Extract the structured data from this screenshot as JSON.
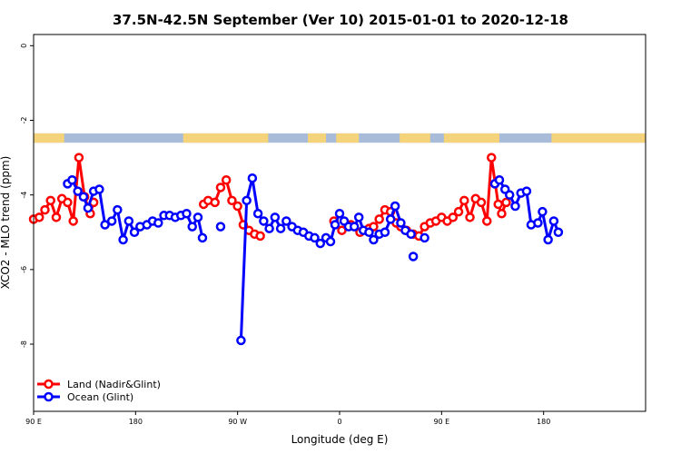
{
  "chart_data": {
    "type": "line",
    "title": "37.5N-42.5N September (Ver 10)   2015-01-01 to 2020-12-18",
    "xlabel": "Longitude (deg E)",
    "ylabel": "XCO2 - MLO trend (ppm)",
    "xlim": [
      90,
      630
    ],
    "ylim": [
      -9.8,
      0.3
    ],
    "xticks": [
      {
        "value": 90,
        "label": "90 E"
      },
      {
        "value": 180,
        "label": "180"
      },
      {
        "value": 270,
        "label": "90 W"
      },
      {
        "value": 360,
        "label": "0"
      },
      {
        "value": 450,
        "label": "90 E"
      },
      {
        "value": 540,
        "label": "180"
      }
    ],
    "yticks": [
      {
        "value": 0,
        "label": "0"
      },
      {
        "value": -2,
        "label": "-2"
      },
      {
        "value": -4,
        "label": "-4"
      },
      {
        "value": -6,
        "label": "-6"
      },
      {
        "value": -8,
        "label": "-8"
      }
    ],
    "map_strip": {
      "y_top": -2.35,
      "y_bottom": -2.6,
      "land_color": "#F4D37A",
      "ocean_color": "#A8BCDA"
    },
    "series": [
      {
        "name": "Land (Nadir&Glint)",
        "color": "#FF0000",
        "segments": [
          [
            [
              90,
              -4.65
            ],
            [
              95,
              -4.6
            ],
            [
              100,
              -4.4
            ],
            [
              105,
              -4.15
            ],
            [
              110,
              -4.6
            ],
            [
              115,
              -4.1
            ],
            [
              120,
              -4.2
            ],
            [
              125,
              -4.7
            ],
            [
              130,
              -3.0
            ],
            [
              135,
              -4.05
            ],
            [
              140,
              -4.5
            ],
            [
              143,
              -4.2
            ]
          ],
          [
            [
              240,
              -4.25
            ],
            [
              244,
              -4.15
            ],
            [
              250,
              -4.2
            ],
            [
              255,
              -3.8
            ],
            [
              260,
              -3.6
            ],
            [
              265,
              -4.15
            ],
            [
              270,
              -4.3
            ],
            [
              275,
              -4.8
            ],
            [
              280,
              -4.95
            ],
            [
              285,
              -5.05
            ],
            [
              290,
              -5.1
            ]
          ],
          [
            [
              355,
              -4.7
            ],
            [
              362,
              -4.95
            ],
            [
              370,
              -4.8
            ],
            [
              378,
              -5.0
            ],
            [
              386,
              -4.9
            ],
            [
              390,
              -4.85
            ],
            [
              395,
              -4.65
            ],
            [
              400,
              -4.4
            ],
            [
              405,
              -4.45
            ],
            [
              410,
              -4.75
            ],
            [
              414,
              -4.85
            ],
            [
              419,
              -4.95
            ],
            [
              425,
              -5.05
            ],
            [
              430,
              -5.1
            ],
            [
              435,
              -4.85
            ],
            [
              440,
              -4.75
            ],
            [
              445,
              -4.7
            ],
            [
              450,
              -4.6
            ],
            [
              455,
              -4.7
            ],
            [
              460,
              -4.6
            ],
            [
              465,
              -4.45
            ],
            [
              470,
              -4.15
            ],
            [
              475,
              -4.6
            ],
            [
              480,
              -4.1
            ],
            [
              485,
              -4.2
            ],
            [
              490,
              -4.7
            ],
            [
              494,
              -3.0
            ],
            [
              500,
              -4.25
            ],
            [
              503,
              -4.5
            ],
            [
              507,
              -4.2
            ]
          ]
        ]
      },
      {
        "name": "Ocean (Glint)",
        "color": "#0000FF",
        "segments": [
          [
            [
              120,
              -3.7
            ],
            [
              124,
              -3.6
            ],
            [
              129,
              -3.9
            ],
            [
              134,
              -4.05
            ],
            [
              138,
              -4.35
            ],
            [
              143,
              -3.9
            ],
            [
              148,
              -3.85
            ],
            [
              153,
              -4.8
            ],
            [
              159,
              -4.7
            ],
            [
              164,
              -4.4
            ],
            [
              169,
              -5.2
            ],
            [
              174,
              -4.7
            ],
            [
              179,
              -5.0
            ],
            [
              184,
              -4.85
            ],
            [
              190,
              -4.8
            ],
            [
              195,
              -4.7
            ],
            [
              200,
              -4.75
            ],
            [
              205,
              -4.55
            ],
            [
              210,
              -4.55
            ],
            [
              215,
              -4.6
            ],
            [
              220,
              -4.55
            ],
            [
              225,
              -4.5
            ],
            [
              230,
              -4.85
            ],
            [
              235,
              -4.6
            ],
            [
              239,
              -5.15
            ]
          ],
          [
            [
              255,
              -4.85
            ]
          ],
          [
            [
              273,
              -7.9
            ],
            [
              278,
              -4.15
            ],
            [
              283,
              -3.55
            ],
            [
              288,
              -4.5
            ],
            [
              293,
              -4.7
            ],
            [
              298,
              -4.9
            ],
            [
              303,
              -4.6
            ],
            [
              308,
              -4.9
            ],
            [
              313,
              -4.7
            ],
            [
              318,
              -4.85
            ],
            [
              323,
              -4.95
            ],
            [
              328,
              -5.0
            ],
            [
              333,
              -5.1
            ],
            [
              338,
              -5.15
            ],
            [
              343,
              -5.3
            ],
            [
              348,
              -5.15
            ],
            [
              352,
              -5.25
            ],
            [
              356,
              -4.8
            ],
            [
              360,
              -4.5
            ],
            [
              364,
              -4.7
            ],
            [
              368,
              -4.85
            ],
            [
              373,
              -4.85
            ],
            [
              377,
              -4.6
            ],
            [
              381,
              -4.95
            ],
            [
              386,
              -5.0
            ],
            [
              390,
              -5.2
            ],
            [
              395,
              -5.05
            ],
            [
              400,
              -5.0
            ],
            [
              405,
              -4.65
            ],
            [
              409,
              -4.3
            ],
            [
              414,
              -4.75
            ],
            [
              418,
              -4.95
            ],
            [
              423,
              -5.05
            ]
          ],
          [
            [
              425,
              -5.65
            ]
          ],
          [
            [
              435,
              -5.15
            ]
          ],
          [
            [
              497,
              -3.7
            ],
            [
              501,
              -3.6
            ],
            [
              506,
              -3.85
            ],
            [
              510,
              -4.0
            ],
            [
              515,
              -4.3
            ],
            [
              520,
              -3.95
            ],
            [
              525,
              -3.9
            ],
            [
              529,
              -4.8
            ],
            [
              535,
              -4.75
            ],
            [
              539,
              -4.45
            ],
            [
              544,
              -5.2
            ],
            [
              549,
              -4.7
            ],
            [
              553,
              -5.0
            ]
          ]
        ]
      }
    ],
    "legend": {
      "position": "bottom-left"
    }
  }
}
